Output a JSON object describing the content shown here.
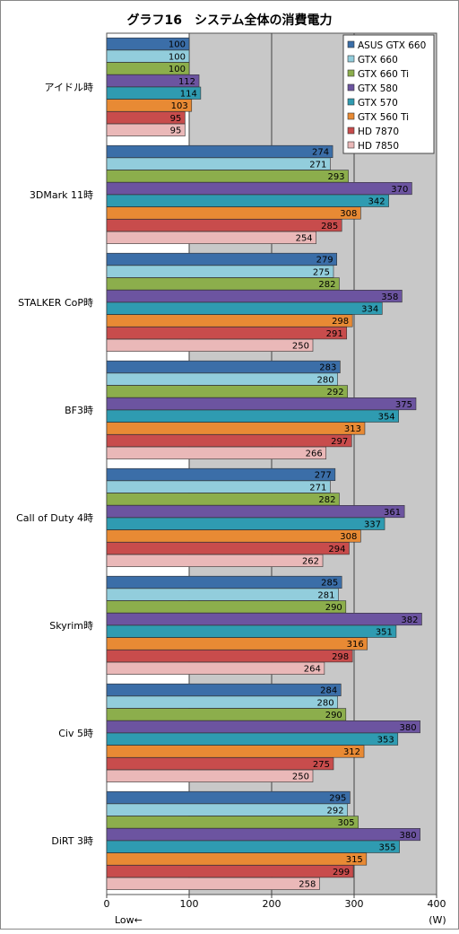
{
  "chart_data": {
    "type": "bar",
    "orientation": "horizontal",
    "title": "グラフ16　システム全体の消費電力",
    "unit": "(W)",
    "axis_note": "Low←",
    "xlim": [
      0,
      400
    ],
    "xticks": [
      0,
      100,
      200,
      300,
      400
    ],
    "grid": true,
    "legend_position": "top-right",
    "categories": [
      "アイドル時",
      "3DMark 11時",
      "STALKER CoP時",
      "BF3時",
      "Call of Duty 4時",
      "Skyrim時",
      "Civ 5時",
      "DiRT 3時"
    ],
    "series": [
      {
        "name": "ASUS GTX 660",
        "color": "#3b6ea8",
        "values": [
          100,
          274,
          279,
          283,
          277,
          285,
          284,
          295
        ]
      },
      {
        "name": "GTX 660",
        "color": "#92cddc",
        "values": [
          100,
          271,
          275,
          280,
          271,
          281,
          280,
          292
        ]
      },
      {
        "name": "GTX 660 Ti",
        "color": "#8cae4c",
        "values": [
          100,
          293,
          282,
          292,
          282,
          290,
          290,
          305
        ]
      },
      {
        "name": "GTX 580",
        "color": "#6c54a0",
        "values": [
          112,
          370,
          358,
          375,
          361,
          382,
          380,
          380
        ]
      },
      {
        "name": "GTX 570",
        "color": "#2f9bb1",
        "values": [
          114,
          342,
          334,
          354,
          337,
          351,
          353,
          355
        ]
      },
      {
        "name": "GTX 560 Ti",
        "color": "#e88a34",
        "values": [
          103,
          308,
          298,
          313,
          308,
          316,
          312,
          315
        ]
      },
      {
        "name": "HD 7870",
        "color": "#c84c4c",
        "values": [
          95,
          285,
          291,
          297,
          294,
          298,
          275,
          299
        ]
      },
      {
        "name": "HD 7850",
        "color": "#eab8b8",
        "values": [
          95,
          254,
          250,
          266,
          262,
          264,
          250,
          258
        ]
      }
    ]
  }
}
